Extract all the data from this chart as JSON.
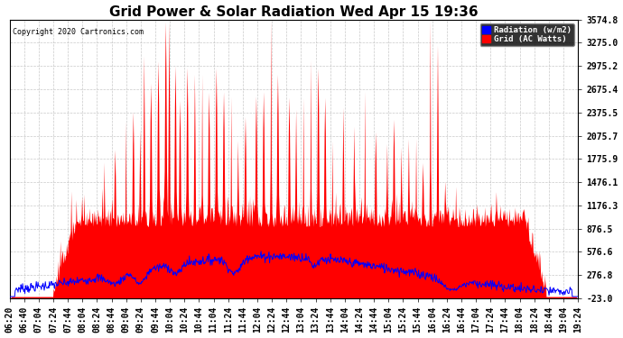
{
  "title": "Grid Power & Solar Radiation Wed Apr 15 19:36",
  "copyright": "Copyright 2020 Cartronics.com",
  "legend_radiation": "Radiation (w/m2)",
  "legend_grid": "Grid (AC Watts)",
  "yticks": [
    -23.0,
    276.8,
    576.6,
    876.5,
    1176.3,
    1476.1,
    1775.9,
    2075.7,
    2375.5,
    2675.4,
    2975.2,
    3275.0,
    3574.8
  ],
  "ymin": -23.0,
  "ymax": 3574.8,
  "background_color": "#ffffff",
  "plot_bg_color": "#ffffff",
  "grid_color": "#bbbbbb",
  "red_color": "#ff0000",
  "blue_color": "#0000ff",
  "title_fontsize": 11,
  "tick_fontsize": 7,
  "xtick_labels": [
    "06:20",
    "06:40",
    "07:04",
    "07:24",
    "07:44",
    "08:04",
    "08:24",
    "08:44",
    "09:04",
    "09:24",
    "09:44",
    "10:04",
    "10:24",
    "10:44",
    "11:04",
    "11:24",
    "11:44",
    "12:04",
    "12:24",
    "12:44",
    "13:04",
    "13:24",
    "13:44",
    "14:04",
    "14:24",
    "14:44",
    "15:04",
    "15:24",
    "15:44",
    "16:04",
    "16:24",
    "16:44",
    "17:04",
    "17:24",
    "17:44",
    "18:04",
    "18:24",
    "18:44",
    "19:04",
    "19:24"
  ]
}
